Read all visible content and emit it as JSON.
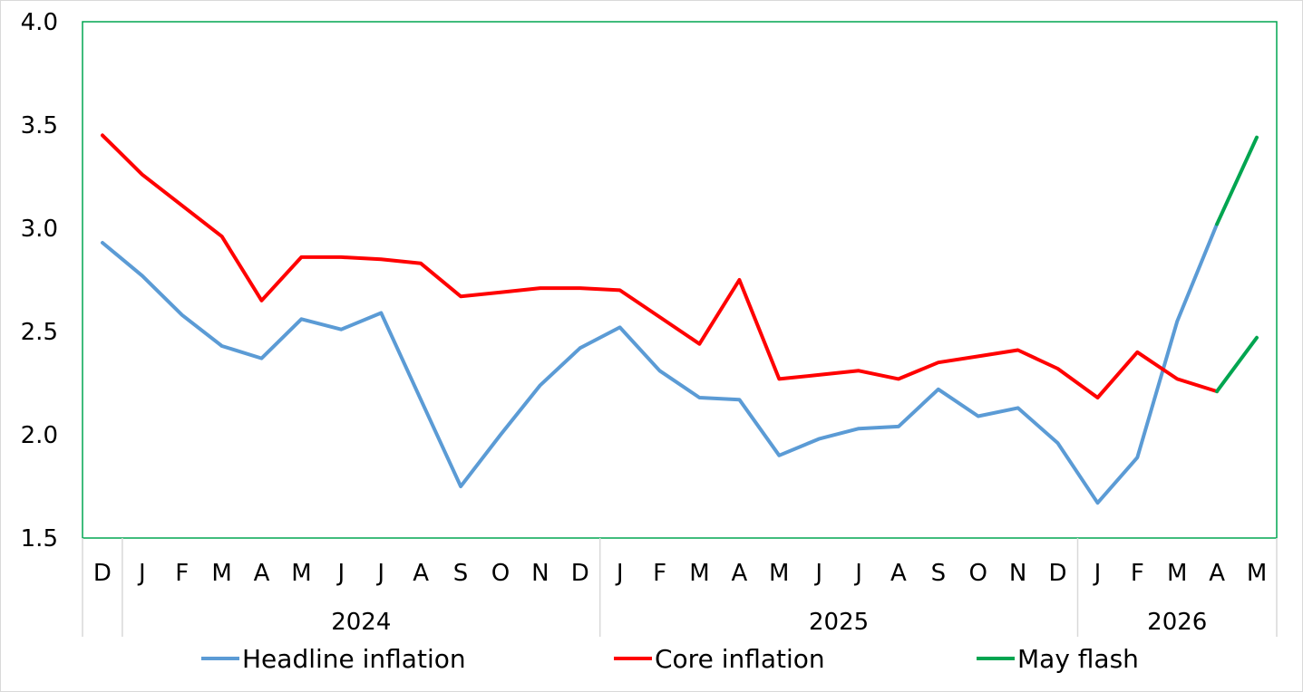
{
  "chart_data": {
    "type": "line",
    "title": "",
    "xlabel": "",
    "ylabel": "",
    "ylim": [
      1.5,
      4.0
    ],
    "yticks": [
      "1.5",
      "2.0",
      "2.5",
      "3.0",
      "3.5",
      "4.0"
    ],
    "grid": false,
    "legend_position": "bottom",
    "x": [
      "D",
      "J",
      "F",
      "M",
      "A",
      "M",
      "J",
      "J",
      "A",
      "S",
      "O",
      "N",
      "D",
      "J",
      "F",
      "M",
      "A",
      "M",
      "J",
      "J",
      "A",
      "S",
      "O",
      "N",
      "D",
      "J",
      "F",
      "M",
      "A",
      "M"
    ],
    "year_groups": [
      {
        "label": "",
        "start": 0,
        "end": 0
      },
      {
        "label": "2024",
        "start": 1,
        "end": 12
      },
      {
        "label": "2025",
        "start": 13,
        "end": 24
      },
      {
        "label": "2026",
        "start": 25,
        "end": 29
      }
    ],
    "series": [
      {
        "name": "Headline inflation",
        "color": "#5b9bd5",
        "values": [
          2.93,
          2.77,
          2.58,
          2.43,
          2.37,
          2.56,
          2.51,
          2.59,
          2.17,
          1.75,
          2.0,
          2.24,
          2.42,
          2.52,
          2.31,
          2.18,
          2.17,
          1.9,
          1.98,
          2.03,
          2.04,
          2.22,
          2.09,
          2.13,
          1.96,
          1.67,
          1.89,
          2.55,
          3.02,
          null
        ]
      },
      {
        "name": "Core inflation",
        "color": "#ff0000",
        "values": [
          3.45,
          3.26,
          3.11,
          2.96,
          2.65,
          2.86,
          2.86,
          2.85,
          2.83,
          2.67,
          2.69,
          2.71,
          2.71,
          2.7,
          2.57,
          2.44,
          2.75,
          2.27,
          2.29,
          2.31,
          2.27,
          2.35,
          2.38,
          2.41,
          2.32,
          2.18,
          2.4,
          2.27,
          2.21,
          null
        ]
      },
      {
        "name": "May flash",
        "color": "#00a550",
        "segments": [
          {
            "x_index": [
              28,
              29
            ],
            "values": [
              3.02,
              3.44
            ]
          },
          {
            "x_index": [
              28,
              29
            ],
            "values": [
              2.21,
              2.47
            ]
          }
        ]
      }
    ]
  }
}
